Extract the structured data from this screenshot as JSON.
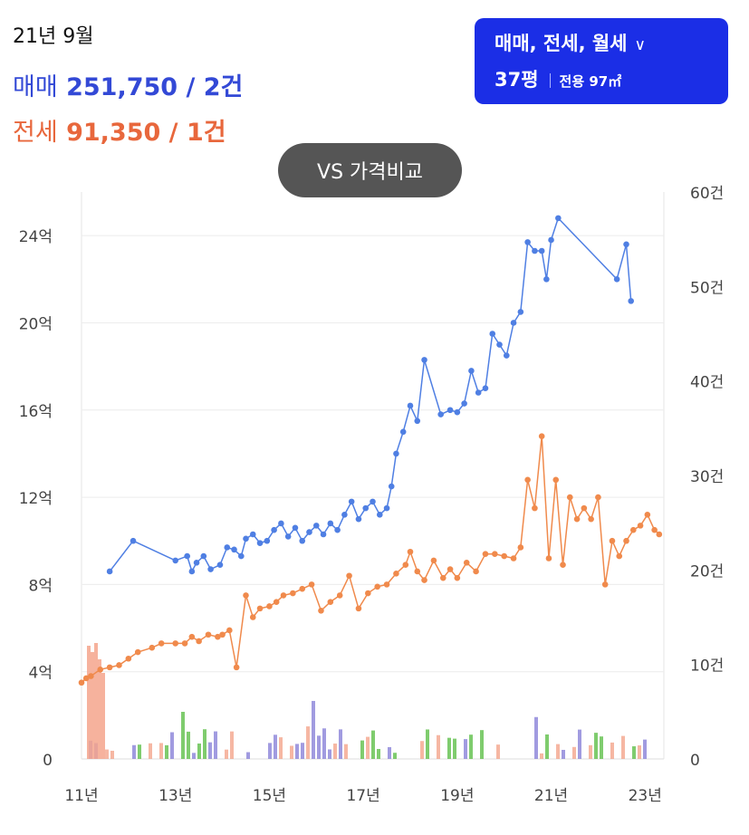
{
  "header": {
    "period": "21년 9월",
    "sale": {
      "label": "매매",
      "value": "251,750 / 2건",
      "color": "#3349d6"
    },
    "jeonse": {
      "label": "전세",
      "value": "91,350 / 1건",
      "color": "#e8673c"
    }
  },
  "filter": {
    "types": "매매, 전세, 월세",
    "size": "37평",
    "area": "전용 97㎡",
    "icon": "chevron-down-icon"
  },
  "compare_button": "VS 가격비교",
  "chart_data": {
    "type": "line",
    "x_ticks": [
      "11년",
      "13년",
      "15년",
      "17년",
      "19년",
      "21년",
      "23년"
    ],
    "y_left_ticks": [
      "0",
      "4억",
      "8억",
      "12억",
      "16억",
      "20억",
      "24억"
    ],
    "y_right_ticks": [
      "0",
      "10건",
      "20건",
      "30건",
      "40건",
      "50건",
      "60건"
    ],
    "ylim_left": [
      0,
      26
    ],
    "ylim_right": [
      0,
      60
    ],
    "xlim": [
      2011,
      2023.4
    ],
    "series": [
      {
        "label": "매매",
        "color": "#4f7fe3",
        "points": [
          [
            2011.6,
            8.6
          ],
          [
            2012.1,
            10.0
          ],
          [
            2013.0,
            9.1
          ],
          [
            2013.25,
            9.3
          ],
          [
            2013.35,
            8.6
          ],
          [
            2013.45,
            9.0
          ],
          [
            2013.6,
            9.3
          ],
          [
            2013.75,
            8.7
          ],
          [
            2013.95,
            8.9
          ],
          [
            2014.1,
            9.7
          ],
          [
            2014.25,
            9.6
          ],
          [
            2014.4,
            9.3
          ],
          [
            2014.5,
            10.1
          ],
          [
            2014.65,
            10.3
          ],
          [
            2014.8,
            9.9
          ],
          [
            2014.95,
            10.0
          ],
          [
            2015.1,
            10.5
          ],
          [
            2015.25,
            10.8
          ],
          [
            2015.4,
            10.2
          ],
          [
            2015.55,
            10.6
          ],
          [
            2015.7,
            10.0
          ],
          [
            2015.85,
            10.4
          ],
          [
            2016.0,
            10.7
          ],
          [
            2016.15,
            10.3
          ],
          [
            2016.3,
            10.8
          ],
          [
            2016.45,
            10.5
          ],
          [
            2016.6,
            11.2
          ],
          [
            2016.75,
            11.8
          ],
          [
            2016.9,
            11.0
          ],
          [
            2017.05,
            11.5
          ],
          [
            2017.2,
            11.8
          ],
          [
            2017.35,
            11.2
          ],
          [
            2017.5,
            11.5
          ],
          [
            2017.6,
            12.5
          ],
          [
            2017.7,
            14.0
          ],
          [
            2017.85,
            15.0
          ],
          [
            2018.0,
            16.2
          ],
          [
            2018.15,
            15.5
          ],
          [
            2018.3,
            18.3
          ],
          [
            2018.65,
            15.8
          ],
          [
            2018.85,
            16.0
          ],
          [
            2019.0,
            15.9
          ],
          [
            2019.15,
            16.3
          ],
          [
            2019.3,
            17.8
          ],
          [
            2019.45,
            16.8
          ],
          [
            2019.6,
            17.0
          ],
          [
            2019.75,
            19.5
          ],
          [
            2019.9,
            19.0
          ],
          [
            2020.05,
            18.5
          ],
          [
            2020.2,
            20.0
          ],
          [
            2020.35,
            20.5
          ],
          [
            2020.5,
            23.7
          ],
          [
            2020.65,
            23.3
          ],
          [
            2020.8,
            23.3
          ],
          [
            2020.9,
            22.0
          ],
          [
            2021.0,
            23.8
          ],
          [
            2021.15,
            24.8
          ],
          [
            2022.4,
            22.0
          ],
          [
            2022.6,
            23.6
          ],
          [
            2022.7,
            21.0
          ]
        ]
      },
      {
        "label": "전세",
        "color": "#f08a4c",
        "points": [
          [
            2011.0,
            3.5
          ],
          [
            2011.1,
            3.7
          ],
          [
            2011.2,
            3.8
          ],
          [
            2011.4,
            4.1
          ],
          [
            2011.6,
            4.2
          ],
          [
            2011.8,
            4.3
          ],
          [
            2012.0,
            4.6
          ],
          [
            2012.2,
            4.9
          ],
          [
            2012.5,
            5.1
          ],
          [
            2012.7,
            5.3
          ],
          [
            2013.0,
            5.3
          ],
          [
            2013.2,
            5.3
          ],
          [
            2013.35,
            5.6
          ],
          [
            2013.5,
            5.4
          ],
          [
            2013.7,
            5.7
          ],
          [
            2013.9,
            5.6
          ],
          [
            2014.0,
            5.7
          ],
          [
            2014.15,
            5.9
          ],
          [
            2014.3,
            4.2
          ],
          [
            2014.5,
            7.5
          ],
          [
            2014.65,
            6.5
          ],
          [
            2014.8,
            6.9
          ],
          [
            2015.0,
            7.0
          ],
          [
            2015.15,
            7.2
          ],
          [
            2015.3,
            7.5
          ],
          [
            2015.5,
            7.6
          ],
          [
            2015.7,
            7.8
          ],
          [
            2015.9,
            8.0
          ],
          [
            2016.1,
            6.8
          ],
          [
            2016.3,
            7.2
          ],
          [
            2016.5,
            7.5
          ],
          [
            2016.7,
            8.4
          ],
          [
            2016.9,
            6.9
          ],
          [
            2017.1,
            7.6
          ],
          [
            2017.3,
            7.9
          ],
          [
            2017.5,
            8.0
          ],
          [
            2017.7,
            8.5
          ],
          [
            2017.9,
            8.9
          ],
          [
            2018.0,
            9.5
          ],
          [
            2018.15,
            8.6
          ],
          [
            2018.3,
            8.2
          ],
          [
            2018.5,
            9.1
          ],
          [
            2018.7,
            8.3
          ],
          [
            2018.85,
            8.7
          ],
          [
            2019.0,
            8.3
          ],
          [
            2019.2,
            9.0
          ],
          [
            2019.4,
            8.6
          ],
          [
            2019.6,
            9.4
          ],
          [
            2019.8,
            9.4
          ],
          [
            2020.0,
            9.3
          ],
          [
            2020.2,
            9.2
          ],
          [
            2020.35,
            9.7
          ],
          [
            2020.5,
            12.8
          ],
          [
            2020.65,
            11.5
          ],
          [
            2020.8,
            14.8
          ],
          [
            2020.95,
            9.2
          ],
          [
            2021.1,
            12.8
          ],
          [
            2021.25,
            8.9
          ],
          [
            2021.4,
            12.0
          ],
          [
            2021.55,
            11.0
          ],
          [
            2021.7,
            11.5
          ],
          [
            2021.85,
            11.0
          ],
          [
            2022.0,
            12.0
          ],
          [
            2022.15,
            8.0
          ],
          [
            2022.3,
            10.0
          ],
          [
            2022.45,
            9.3
          ],
          [
            2022.6,
            10.0
          ],
          [
            2022.75,
            10.5
          ],
          [
            2022.9,
            10.7
          ],
          [
            2023.05,
            11.2
          ],
          [
            2023.2,
            10.5
          ],
          [
            2023.3,
            10.3
          ]
        ]
      }
    ]
  }
}
